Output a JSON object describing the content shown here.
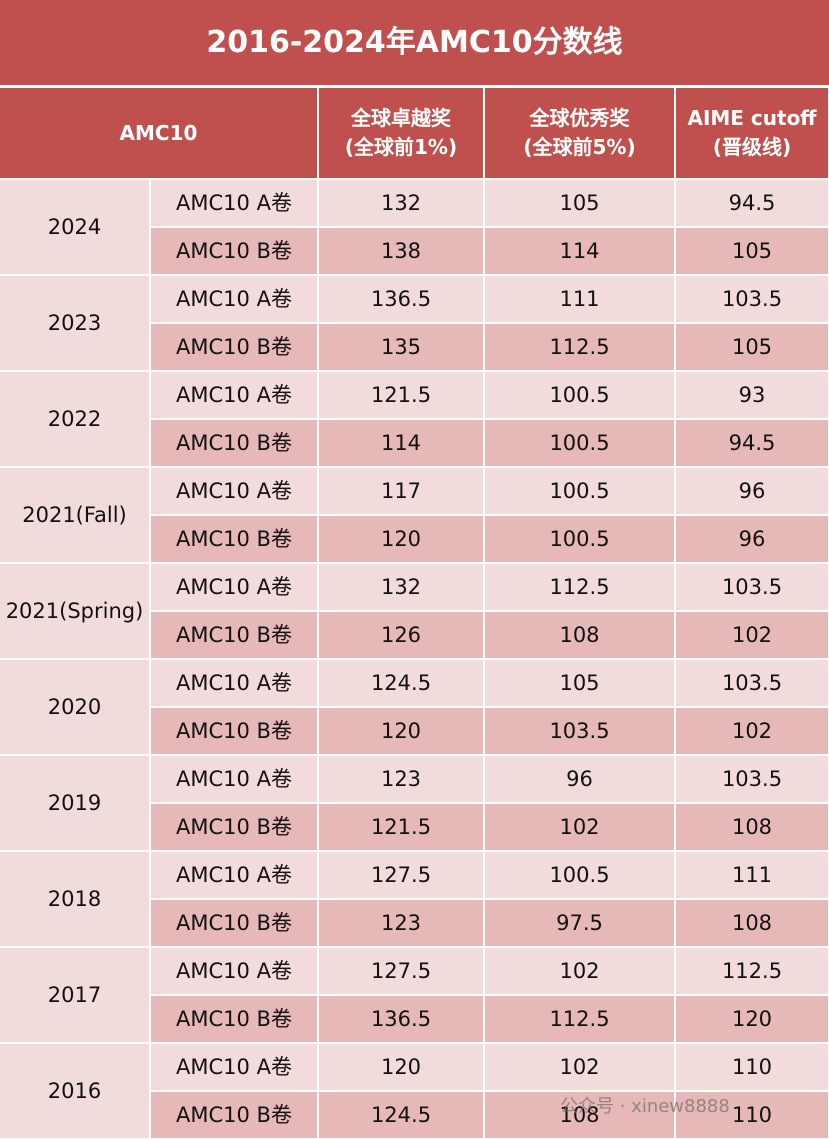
{
  "title": "2016-2024年AMC10分数线",
  "table": {
    "header": [
      [
        "AMC10"
      ],
      [
        "全球卓越奖",
        "(全球前1%)"
      ],
      [
        "全球优秀奖",
        "(全球前5%)"
      ],
      [
        "AIME cutoff",
        "(晋级线)"
      ]
    ],
    "groups": [
      {
        "year": "2024",
        "rows": [
          [
            "AMC10 A卷",
            132,
            105,
            94.5
          ],
          [
            "AMC10 B卷",
            138,
            114,
            105
          ]
        ]
      },
      {
        "year": "2023",
        "rows": [
          [
            "AMC10 A卷",
            136.5,
            111,
            103.5
          ],
          [
            "AMC10 B卷",
            135,
            112.5,
            105
          ]
        ]
      },
      {
        "year": "2022",
        "rows": [
          [
            "AMC10 A卷",
            121.5,
            100.5,
            93
          ],
          [
            "AMC10 B卷",
            114,
            100.5,
            94.5
          ]
        ]
      },
      {
        "year": "2021(Fall)",
        "rows": [
          [
            "AMC10 A卷",
            117,
            100.5,
            96
          ],
          [
            "AMC10 B卷",
            120,
            100.5,
            96
          ]
        ]
      },
      {
        "year": "2021(Spring)",
        "rows": [
          [
            "AMC10 A卷",
            132,
            112.5,
            103.5
          ],
          [
            "AMC10 B卷",
            126,
            108,
            102
          ]
        ]
      },
      {
        "year": "2020",
        "rows": [
          [
            "AMC10 A卷",
            124.5,
            105,
            103.5
          ],
          [
            "AMC10 B卷",
            120,
            103.5,
            102
          ]
        ]
      },
      {
        "year": "2019",
        "rows": [
          [
            "AMC10 A卷",
            123,
            96,
            103.5
          ],
          [
            "AMC10 B卷",
            121.5,
            102,
            108
          ]
        ]
      },
      {
        "year": "2018",
        "rows": [
          [
            "AMC10 A卷",
            127.5,
            100.5,
            111
          ],
          [
            "AMC10 B卷",
            123,
            97.5,
            108
          ]
        ]
      },
      {
        "year": "2017",
        "rows": [
          [
            "AMC10 A卷",
            127.5,
            102,
            112.5
          ],
          [
            "AMC10 B卷",
            136.5,
            112.5,
            120
          ]
        ]
      },
      {
        "year": "2016",
        "rows": [
          [
            "AMC10 A卷",
            120,
            102,
            110
          ],
          [
            "AMC10 B卷",
            124.5,
            108,
            110
          ]
        ]
      }
    ]
  },
  "watermark": "公众号 · xinew8888"
}
